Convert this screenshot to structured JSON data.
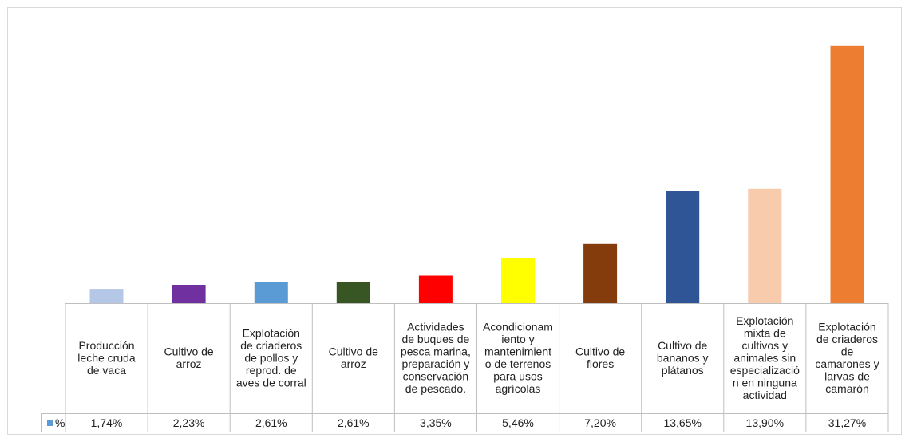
{
  "chart_data": {
    "type": "bar",
    "title": "",
    "xlabel": "",
    "ylabel": "",
    "ylim": [
      0,
      33
    ],
    "grid": false,
    "legend": "table-left",
    "categories": [
      "Producción leche cruda de vaca",
      "Cultivo de arroz",
      "Explotación de criaderos de pollos y reprod. de aves de corral",
      "Cultivo de arroz",
      "Actividades de buques de pesca marina, preparación y conservación de pescado.",
      "Acondicionamiento y mantenimiento de terrenos para usos agrícolas",
      "Cultivo de flores",
      "Cultivo de bananos y plátanos",
      "Explotación mixta de cultivos y animales sin especialización en ninguna actividad",
      "Explotación de criaderos de camarones y larvas de camarón"
    ],
    "category_lines": [
      [
        "Producción",
        "leche cruda",
        "de vaca"
      ],
      [
        "Cultivo de",
        "arroz"
      ],
      [
        "Explotación",
        "de criaderos",
        "de pollos y",
        "reprod. de",
        "aves de corral"
      ],
      [
        "Cultivo de",
        "arroz"
      ],
      [
        "Actividades",
        "de buques de",
        "pesca marina,",
        "preparación y",
        "conservación",
        "de pescado."
      ],
      [
        "Acondicionam",
        "iento y",
        "mantenimient",
        "o de terrenos",
        "para usos",
        "agrícolas"
      ],
      [
        "Cultivo de",
        "flores"
      ],
      [
        "Cultivo de",
        "bananos y",
        "plátanos"
      ],
      [
        "Explotación",
        "mixta de",
        "cultivos y",
        "animales sin",
        "especializació",
        "n en ninguna",
        "actividad"
      ],
      [
        "Explotación",
        "de criaderos",
        "de",
        "camarones y",
        "larvas de",
        "camarón"
      ]
    ],
    "series": [
      {
        "name": "%",
        "values": [
          1.74,
          2.23,
          2.61,
          2.61,
          3.35,
          5.46,
          7.2,
          13.65,
          13.9,
          31.27
        ],
        "value_labels": [
          "1,74%",
          "2,23%",
          "2,61%",
          "2,61%",
          "3,35%",
          "5,46%",
          "7,20%",
          "13,65%",
          "13,90%",
          "31,27%"
        ],
        "legend_color": "#5b9bd5"
      }
    ],
    "bar_colors": [
      "#b4c7e7",
      "#7030a0",
      "#5b9bd5",
      "#375623",
      "#ff0000",
      "#ffff00",
      "#843c0c",
      "#2f5597",
      "#f8cbad",
      "#ed7d31"
    ]
  }
}
